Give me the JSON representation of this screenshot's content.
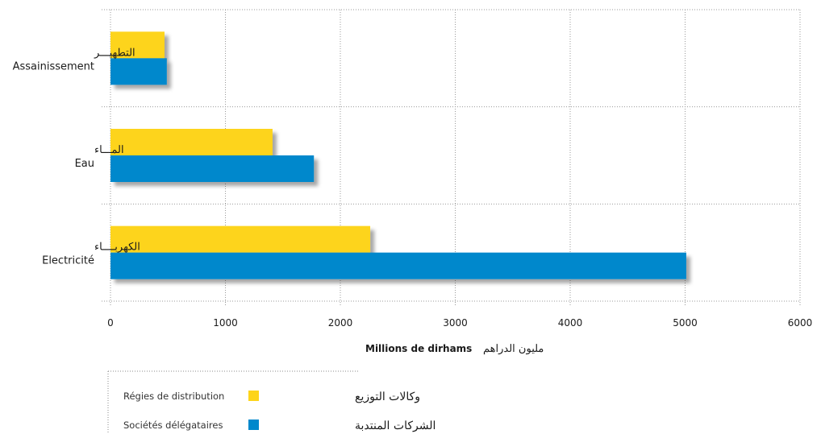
{
  "colors": {
    "regies": "#FDD41A",
    "societes": "#0088CC",
    "grid": "#9a9a9a"
  },
  "chart_data": {
    "type": "bar",
    "orientation": "horizontal",
    "categories": [
      {
        "ar": "التطهيـــر",
        "fr": "Assainissement"
      },
      {
        "ar": "المـــاء",
        "fr": "Eau"
      },
      {
        "ar": "الكهربــــاء",
        "fr": "Electricité"
      }
    ],
    "series": [
      {
        "name_fr": "Régies de distribution",
        "name_ar": "وكالات التوزيع",
        "color": "#FDD41A",
        "values": [
          470,
          1410,
          2260
        ]
      },
      {
        "name_fr": "Sociétés délégataires",
        "name_ar": "الشركات المنتدبة",
        "color": "#0088CC",
        "values": [
          490,
          1770,
          5010
        ]
      }
    ],
    "xlabel_fr": "Millions de dirhams",
    "xlabel_ar": "مليون الدراهم",
    "xlim": [
      0,
      6000
    ],
    "xticks": [
      0,
      1000,
      2000,
      3000,
      4000,
      5000,
      6000
    ],
    "grid": true,
    "legend_position": "bottom-left"
  }
}
